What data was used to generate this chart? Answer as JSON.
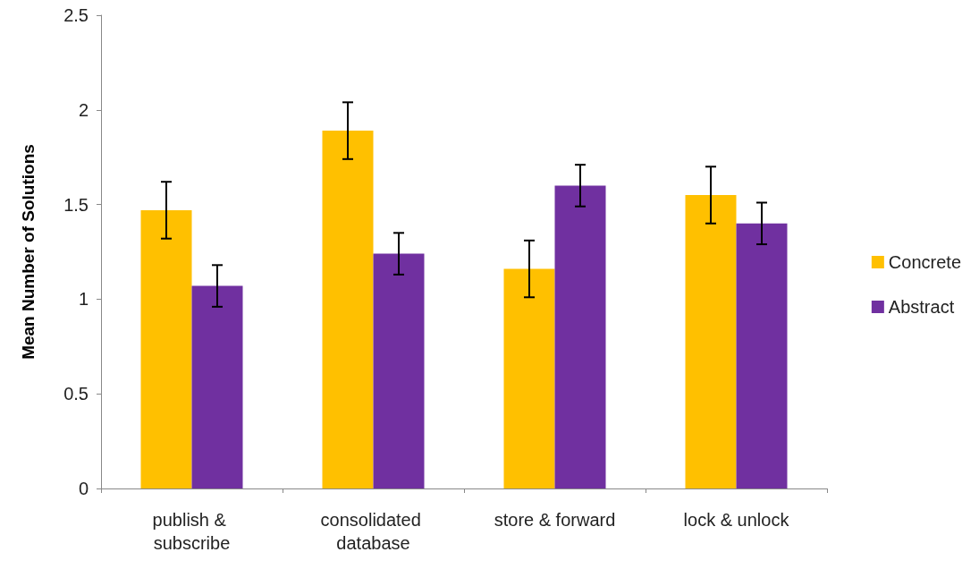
{
  "chart_data": {
    "type": "bar",
    "ylabel": "Mean Number of Solutions",
    "categories": [
      "publish & subscribe",
      "consolidated database",
      "store & forward",
      "lock & unlock"
    ],
    "series": [
      {
        "name": "Concrete",
        "color": "#ffc000",
        "values": [
          1.47,
          1.89,
          1.16,
          1.55
        ],
        "errors": [
          0.15,
          0.15,
          0.15,
          0.15
        ]
      },
      {
        "name": "Abstract",
        "color": "#7030a0",
        "values": [
          1.07,
          1.24,
          1.6,
          1.4
        ],
        "errors": [
          0.11,
          0.11,
          0.11,
          0.11
        ]
      }
    ],
    "ylim": [
      0,
      2.5
    ],
    "yticks": [
      0,
      0.5,
      1,
      1.5,
      2,
      2.5
    ],
    "grid": false,
    "legend": "right"
  }
}
